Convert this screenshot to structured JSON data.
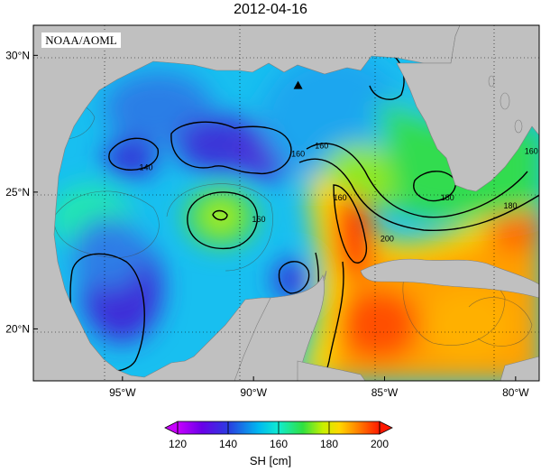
{
  "title": "2012-04-16",
  "logo": "NOAA/AOML",
  "map": {
    "lat_range": [
      18.1,
      31.1
    ],
    "lon_range": [
      -98.4,
      -79.1
    ],
    "lat_ticks": [
      {
        "value": 20,
        "label": "20°N"
      },
      {
        "value": 25,
        "label": "25°N"
      },
      {
        "value": 30,
        "label": "30°N"
      }
    ],
    "lon_ticks": [
      {
        "value": -95,
        "label": "95°W"
      },
      {
        "value": -90,
        "label": "90°W"
      },
      {
        "value": -85,
        "label": "85°W"
      },
      {
        "value": -80,
        "label": "80°W"
      }
    ],
    "grid": true,
    "land_color": "#c0c0c0",
    "contour_labels": [
      {
        "text": "140",
        "lat": 25.8,
        "lon": -94.1
      },
      {
        "text": "160",
        "lat": 26.3,
        "lon": -88.3
      },
      {
        "text": "160",
        "lat": 26.6,
        "lon": -87.4
      },
      {
        "text": "160",
        "lat": 24.7,
        "lon": -86.7
      },
      {
        "text": "160",
        "lat": 23.9,
        "lon": -89.8
      },
      {
        "text": "200",
        "lat": 23.2,
        "lon": -84.9
      },
      {
        "text": "180",
        "lat": 24.7,
        "lon": -82.6
      },
      {
        "text": "180",
        "lat": 24.4,
        "lon": -80.2
      },
      {
        "text": "160",
        "lat": 26.4,
        "lon": -79.4
      }
    ],
    "marker": {
      "symbol": "triangle",
      "lat": 28.9,
      "lon": -88.3
    }
  },
  "colorbar": {
    "label": "SH [cm]",
    "min": 120,
    "max": 200,
    "ticks": [
      "120",
      "140",
      "160",
      "180",
      "200"
    ],
    "colors": [
      "#d000ff",
      "#5a00e8",
      "#2a3be0",
      "#00b8f0",
      "#10ecd0",
      "#30e040",
      "#c8f000",
      "#ffd800",
      "#ff7a00",
      "#ff1800"
    ]
  }
}
